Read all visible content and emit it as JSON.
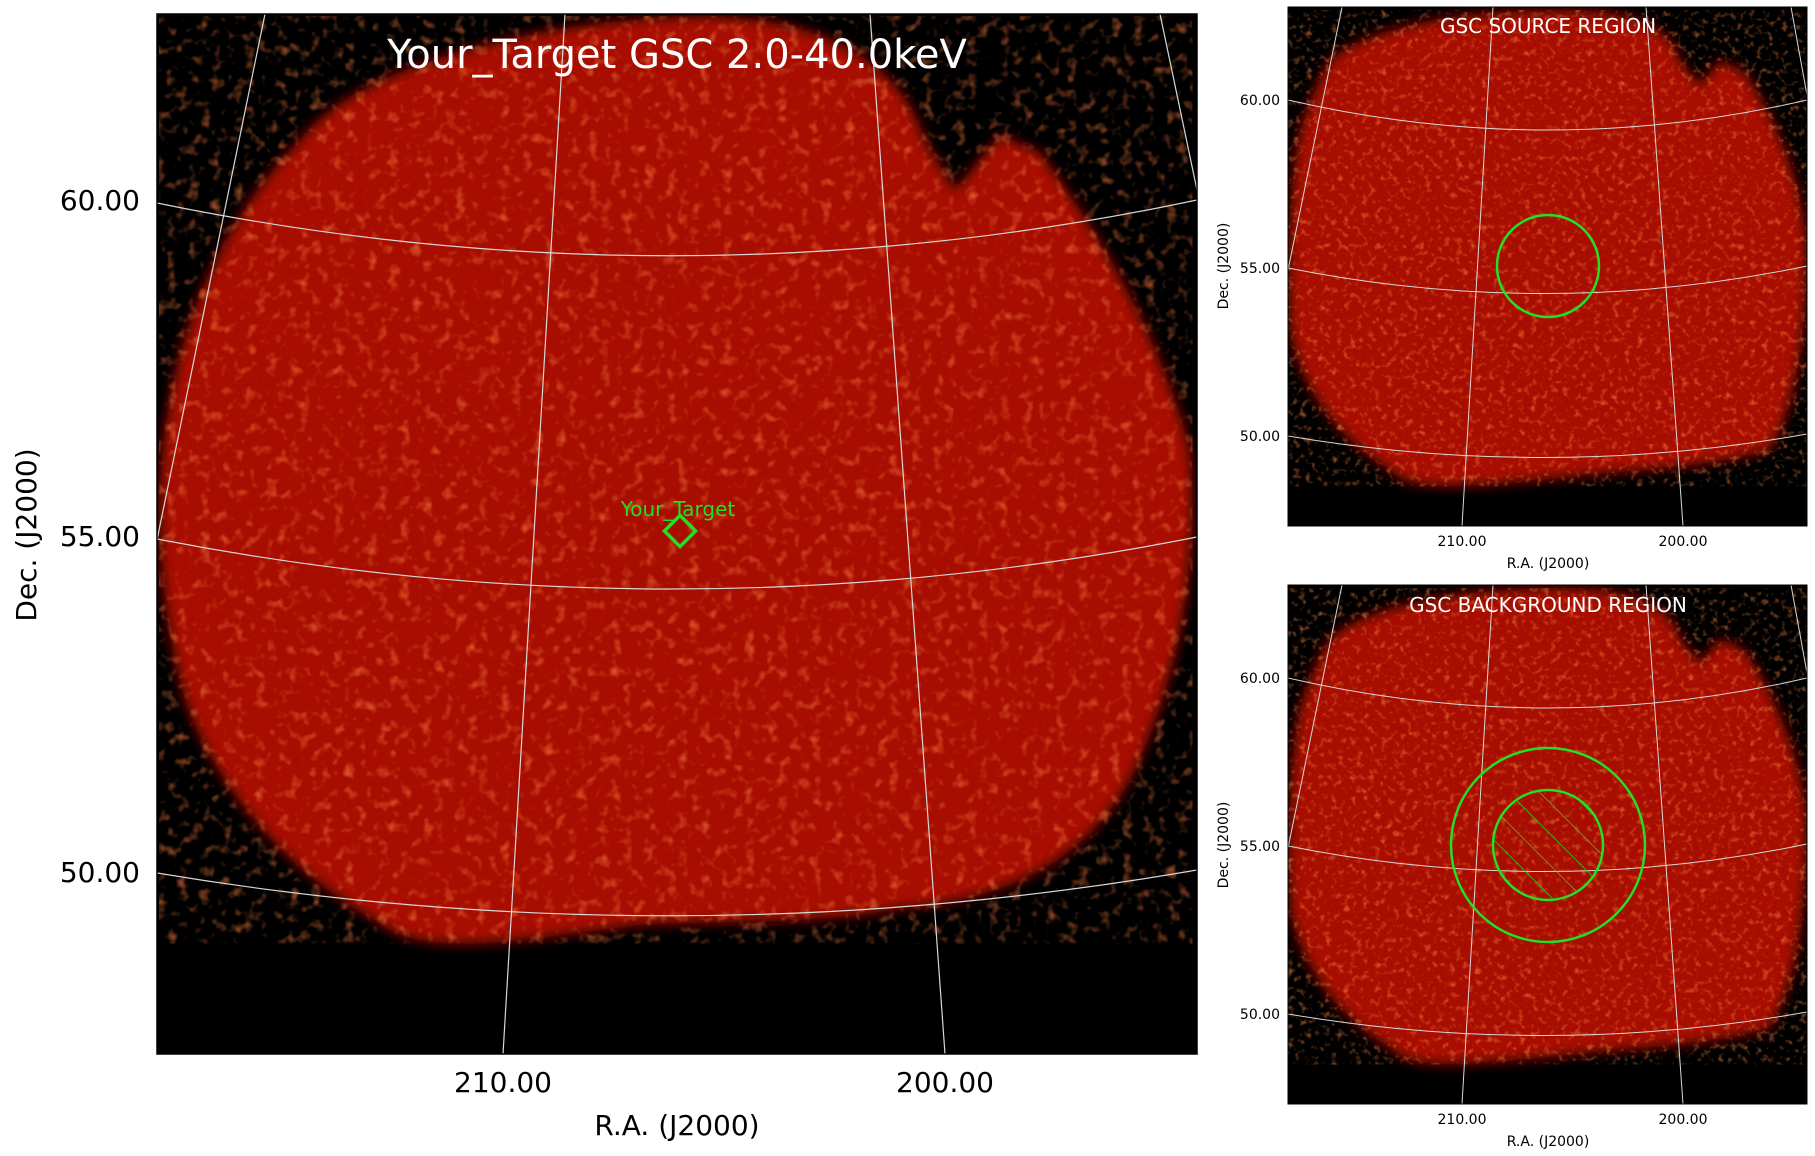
{
  "main": {
    "title": "Your_Target GSC 2.0-40.0keV",
    "marker_label": "Your_Target",
    "dec_ticks": [
      "60.00",
      "55.00",
      "50.00"
    ],
    "ra_ticks": [
      "210.00",
      "200.00"
    ],
    "xlabel": "R.A. (J2000)",
    "ylabel": "Dec. (J2000)"
  },
  "source_panel": {
    "title": "GSC SOURCE REGION",
    "dec_ticks": [
      "60.00",
      "55.00",
      "50.00"
    ],
    "ra_ticks": [
      "210.00",
      "200.00"
    ],
    "xlabel": "R.A. (J2000)",
    "ylabel": "Dec. (J2000)"
  },
  "background_panel": {
    "title": "GSC BACKGROUND REGION",
    "dec_ticks": [
      "60.00",
      "55.00",
      "50.00"
    ],
    "ra_ticks": [
      "210.00",
      "200.00"
    ],
    "xlabel": "R.A. (J2000)",
    "ylabel": "Dec. (J2000)"
  },
  "colors": {
    "sky": "#000000",
    "emission": "#b30f05",
    "region": "#22e022",
    "grid": "#d8d8d8"
  }
}
